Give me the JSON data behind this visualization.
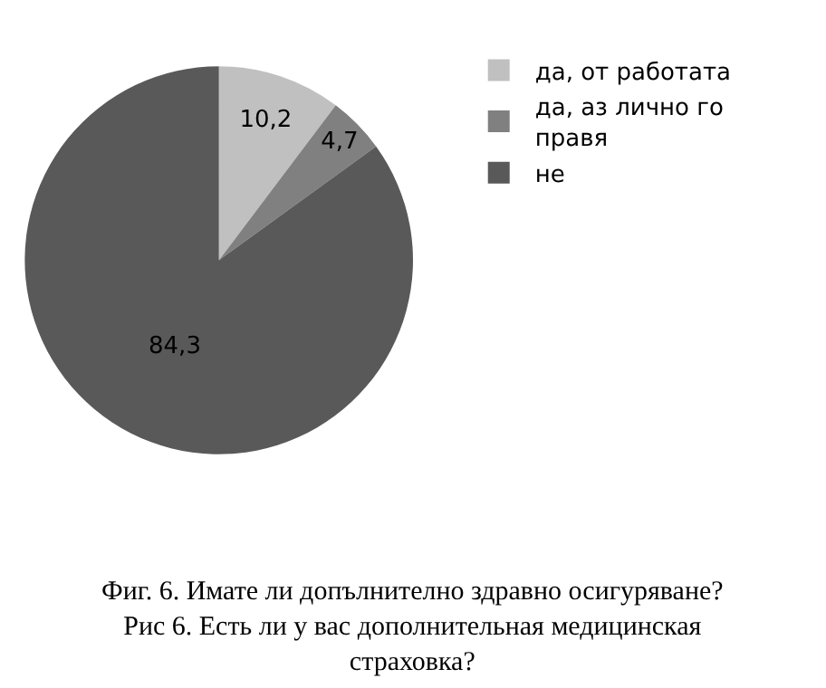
{
  "chart_data": {
    "type": "pie",
    "categories": [
      "да, от работата",
      "да, аз лично го правя",
      "не"
    ],
    "values": [
      10.2,
      4.7,
      84.3
    ],
    "value_labels": [
      "10,2",
      "4,7",
      "84,3"
    ],
    "colors": [
      "#c0c0c0",
      "#808080",
      "#595959"
    ],
    "legend": "right",
    "annotations": [
      "Фиг. 6. Имате ли допълнително здравно осигуряване?",
      "Рис 6. Есть ли у вас дополнительная медицинская страховка?"
    ]
  }
}
